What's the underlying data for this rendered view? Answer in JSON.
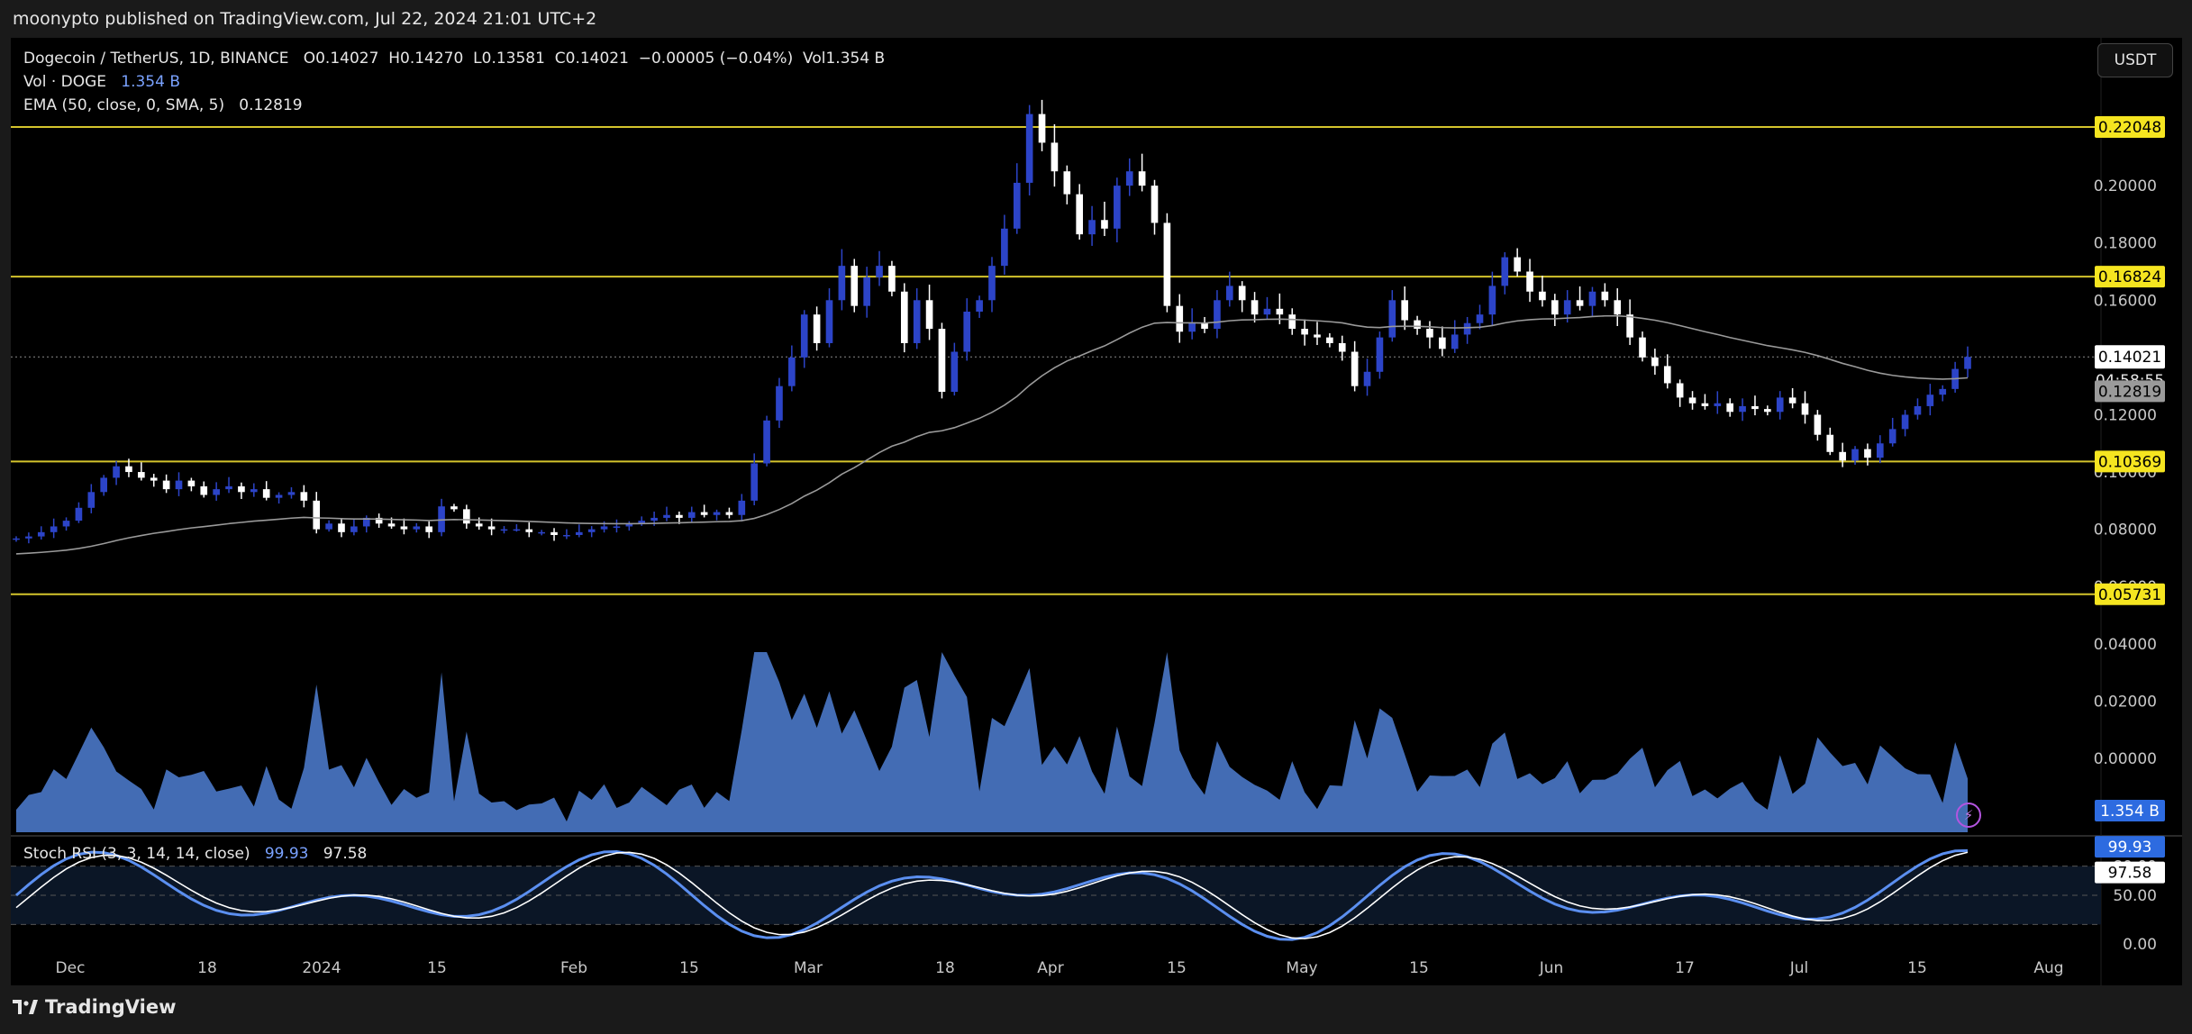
{
  "publish_line": "moonypto published on TradingView.com, Jul 22, 2024 21:01 UTC+2",
  "brand": "TradingView",
  "currency_button": "USDT",
  "legend": {
    "symbol": "Dogecoin / TetherUS, 1D, BINANCE",
    "open_label": "O",
    "open": "0.14027",
    "high_label": "H",
    "high": "0.14270",
    "low_label": "L",
    "low": "0.13581",
    "close_label": "C",
    "close": "0.14021",
    "change": "−0.00005 (−0.04%)",
    "vol_label": "Vol",
    "vol": "1.354 B",
    "volume_study": "Vol · DOGE",
    "volume_value": "1.354 B",
    "ema_study": "EMA (50, close, 0, SMA, 5)",
    "ema_value": "0.12819"
  },
  "stoch_legend": {
    "study": "Stoch RSI (3, 3, 14, 14, close)",
    "k": "99.93",
    "d": "97.58"
  },
  "price_tags": {
    "last_price": "0.14021",
    "countdown": "04:58:55",
    "ema": "0.12819",
    "volume": "1.354 B",
    "stoch_k": "99.93",
    "stoch_d": "97.58"
  },
  "colors": {
    "background": "#000000",
    "up_candle": "#2c44c8",
    "down_candle": "#ffffff",
    "level_line": "#d4c42c",
    "ema_line": "#9a9a9a",
    "volume_fill": "#4f7fd3",
    "stoch_k": "#5b8ff0",
    "stoch_d": "#ffffff"
  },
  "chart_data": {
    "type": "candlestick",
    "title": "Dogecoin / TetherUS, 1D, BINANCE",
    "x_ticks": [
      "Dec",
      "18",
      "2024",
      "15",
      "Feb",
      "15",
      "Mar",
      "18",
      "Apr",
      "15",
      "May",
      "15",
      "Jun",
      "17",
      "Jul",
      "15",
      "Aug"
    ],
    "y_ticks": [
      "0.20000",
      "0.18000",
      "0.16000",
      "0.14000",
      "0.12000",
      "0.10000",
      "0.08000",
      "0.06000",
      "0.04000",
      "0.02000",
      "0.00000"
    ],
    "stoch_ticks": [
      "80.00",
      "50.00",
      "0.00"
    ],
    "price_range": [
      0.0,
      0.225
    ],
    "horizontal_levels": [
      {
        "label": "0.22048",
        "value": 0.22048
      },
      {
        "label": "0.16824",
        "value": 0.16824
      },
      {
        "label": "0.10369",
        "value": 0.10369
      },
      {
        "label": "0.05731",
        "value": 0.05731
      }
    ],
    "last_price": 0.14021,
    "ema_value": 0.12819,
    "close_series": [
      0.0768,
      0.0775,
      0.079,
      0.081,
      0.083,
      0.0875,
      0.093,
      0.098,
      0.102,
      0.1,
      0.098,
      0.097,
      0.094,
      0.097,
      0.095,
      0.092,
      0.094,
      0.095,
      0.093,
      0.094,
      0.091,
      0.092,
      0.093,
      0.09,
      0.08,
      0.082,
      0.079,
      0.081,
      0.084,
      0.082,
      0.081,
      0.08,
      0.081,
      0.079,
      0.088,
      0.087,
      0.082,
      0.081,
      0.08,
      0.08,
      0.08,
      0.079,
      0.079,
      0.078,
      0.078,
      0.079,
      0.08,
      0.081,
      0.081,
      0.082,
      0.083,
      0.084,
      0.085,
      0.084,
      0.086,
      0.085,
      0.086,
      0.085,
      0.09,
      0.103,
      0.118,
      0.13,
      0.14,
      0.155,
      0.145,
      0.16,
      0.172,
      0.158,
      0.168,
      0.172,
      0.163,
      0.145,
      0.16,
      0.15,
      0.128,
      0.142,
      0.156,
      0.16,
      0.172,
      0.185,
      0.201,
      0.225,
      0.215,
      0.205,
      0.197,
      0.183,
      0.188,
      0.185,
      0.2,
      0.205,
      0.2,
      0.187,
      0.158,
      0.149,
      0.152,
      0.15,
      0.16,
      0.165,
      0.16,
      0.155,
      0.157,
      0.155,
      0.15,
      0.148,
      0.147,
      0.145,
      0.142,
      0.13,
      0.135,
      0.147,
      0.16,
      0.153,
      0.15,
      0.147,
      0.143,
      0.148,
      0.152,
      0.155,
      0.165,
      0.175,
      0.17,
      0.163,
      0.16,
      0.155,
      0.16,
      0.158,
      0.163,
      0.16,
      0.155,
      0.147,
      0.14,
      0.137,
      0.131,
      0.126,
      0.124,
      0.123,
      0.124,
      0.121,
      0.123,
      0.122,
      0.121,
      0.126,
      0.124,
      0.12,
      0.113,
      0.107,
      0.104,
      0.108,
      0.105,
      0.11,
      0.115,
      0.12,
      0.123,
      0.127,
      0.129,
      0.136,
      0.1402
    ]
  }
}
